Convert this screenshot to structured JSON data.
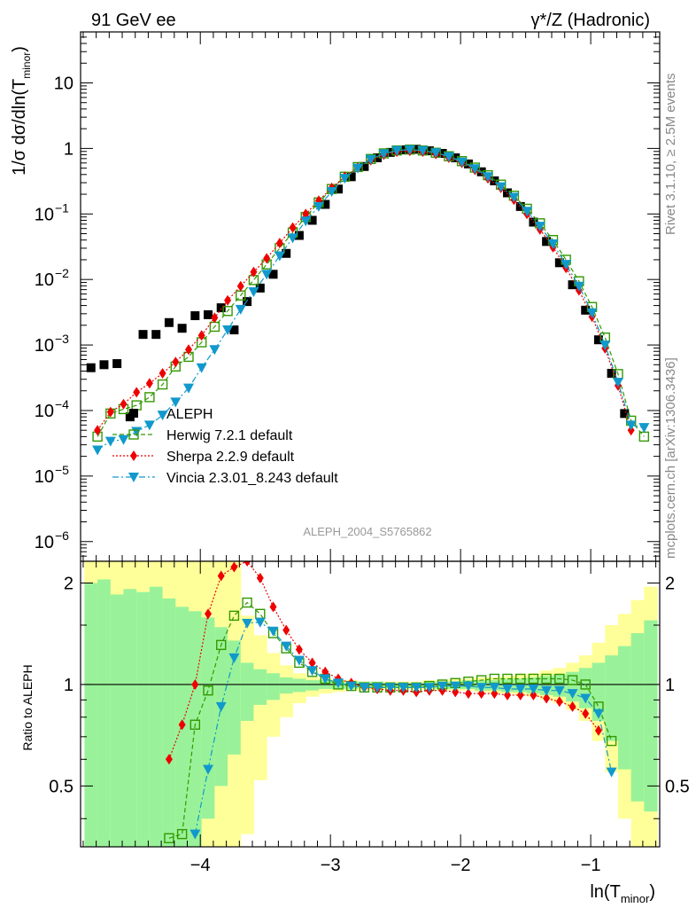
{
  "header": {
    "left": "91 GeV ee",
    "right": "γ*/Z (Hadronic)",
    "side_top": "Rivet 3.1.10, ≥ 2.5M events",
    "side_bottom": "mcplots.cern.ch [arXiv:1306.3436]",
    "watermark": "ALEPH_2004_S5765862"
  },
  "colors": {
    "data": "#000000",
    "herwig": "#339900",
    "sherpa": "#ee0000",
    "vincia": "#1199cc",
    "band_outer": "#ffff99",
    "band_inner": "#99f299"
  },
  "chart_data": [
    {
      "type": "scatter",
      "ylabel": "1/σ dσ/dln(T_minor)",
      "yscale": "log",
      "ylim": [
        5e-07,
        60
      ],
      "xlim": [
        -4.92,
        -0.47
      ],
      "ytick_labels": [
        "10^-6",
        "10^-5",
        "10^-4",
        "10^-3",
        "10^-2",
        "10^-1",
        "1",
        "10"
      ],
      "legend_position": "lower-left",
      "series": [
        {
          "name": "ALEPH",
          "x": [
            -4.84,
            -4.74,
            -4.64,
            -4.54,
            -4.44,
            -4.34,
            -4.24,
            -4.14,
            -4.04,
            -3.94,
            -3.84,
            -3.74,
            -3.64,
            -3.54,
            -3.44,
            -3.34,
            -3.24,
            -3.14,
            -3.04,
            -2.94,
            -2.84,
            -2.74,
            -2.64,
            -2.54,
            -2.44,
            -2.34,
            -2.24,
            -2.14,
            -2.04,
            -1.94,
            -1.84,
            -1.74,
            -1.64,
            -1.54,
            -1.44,
            -1.34,
            -1.24,
            -1.14,
            -1.04,
            -0.94,
            -0.84,
            -0.74,
            -0.64,
            -0.54
          ],
          "y": [
            0.00045,
            0.0005,
            0.00052,
            8e-05,
            0.00145,
            0.00145,
            0.0022,
            0.0018,
            0.0028,
            0.0029,
            0.0037,
            0.0017,
            0.0046,
            0.0074,
            0.012,
            0.025,
            0.047,
            0.08,
            0.14,
            0.24,
            0.37,
            0.53,
            0.72,
            0.87,
            0.95,
            0.97,
            0.92,
            0.84,
            0.72,
            0.58,
            0.44,
            0.32,
            0.21,
            0.13,
            0.075,
            0.038,
            0.018,
            0.0083,
            0.0034,
            0.0012,
            0.00037,
            9e-05,
            0,
            0
          ],
          "note": ""
        },
        {
          "name": "Herwig 7.2.1 default",
          "x": [
            -4.79,
            -4.69,
            -4.59,
            -4.49,
            -4.39,
            -4.29,
            -4.19,
            -4.09,
            -3.99,
            -3.89,
            -3.79,
            -3.69,
            -3.59,
            -3.49,
            -3.39,
            -3.29,
            -3.19,
            -3.09,
            -2.99,
            -2.89,
            -2.79,
            -2.69,
            -2.59,
            -2.49,
            -2.39,
            -2.29,
            -2.19,
            -2.09,
            -1.99,
            -1.89,
            -1.79,
            -1.69,
            -1.59,
            -1.49,
            -1.39,
            -1.29,
            -1.19,
            -1.09,
            -0.99,
            -0.89,
            -0.79,
            -0.69,
            -0.59,
            -0.49
          ],
          "y": [
            4e-05,
            9e-05,
            0.000105,
            0.00012,
            0.00016,
            0.00025,
            0.00047,
            0.00066,
            0.0011,
            0.0019,
            0.0033,
            0.0057,
            0.0098,
            0.017,
            0.03,
            0.052,
            0.09,
            0.15,
            0.24,
            0.37,
            0.52,
            0.69,
            0.84,
            0.93,
            0.96,
            0.93,
            0.86,
            0.76,
            0.64,
            0.51,
            0.39,
            0.28,
            0.19,
            0.12,
            0.072,
            0.04,
            0.02,
            0.0094,
            0.0038,
            0.0013,
            0.00036,
            7e-05,
            4e-05,
            0
          ]
        },
        {
          "name": "Sherpa 2.2.9 default",
          "x": [
            -4.79,
            -4.69,
            -4.59,
            -4.49,
            -4.39,
            -4.29,
            -4.19,
            -4.09,
            -3.99,
            -3.89,
            -3.79,
            -3.69,
            -3.59,
            -3.49,
            -3.39,
            -3.29,
            -3.19,
            -3.09,
            -2.99,
            -2.89,
            -2.79,
            -2.69,
            -2.59,
            -2.49,
            -2.39,
            -2.29,
            -2.19,
            -2.09,
            -1.99,
            -1.89,
            -1.79,
            -1.69,
            -1.59,
            -1.49,
            -1.39,
            -1.29,
            -1.19,
            -1.09,
            -0.99,
            -0.89,
            -0.79,
            -0.69,
            -0.59,
            -0.49
          ],
          "y": [
            5e-05,
            9.5e-05,
            0.000125,
            0.00019,
            0.00026,
            0.00037,
            0.00055,
            0.00085,
            0.0014,
            0.0026,
            0.0048,
            0.0079,
            0.013,
            0.021,
            0.036,
            0.062,
            0.1,
            0.16,
            0.25,
            0.37,
            0.51,
            0.66,
            0.8,
            0.89,
            0.92,
            0.89,
            0.82,
            0.72,
            0.6,
            0.47,
            0.35,
            0.25,
            0.165,
            0.1,
            0.058,
            0.031,
            0.015,
            0.0068,
            0.0027,
            0.00089,
            0.00024,
            5e-05,
            0,
            0
          ]
        },
        {
          "name": "Vincia 2.3.01_8.243 default",
          "x": [
            -4.79,
            -4.69,
            -4.59,
            -4.49,
            -4.39,
            -4.29,
            -4.19,
            -4.09,
            -3.99,
            -3.89,
            -3.79,
            -3.69,
            -3.59,
            -3.49,
            -3.39,
            -3.29,
            -3.19,
            -3.09,
            -2.99,
            -2.89,
            -2.79,
            -2.69,
            -2.59,
            -2.49,
            -2.39,
            -2.29,
            -2.19,
            -2.09,
            -1.99,
            -1.89,
            -1.79,
            -1.69,
            -1.59,
            -1.49,
            -1.39,
            -1.29,
            -1.19,
            -1.09,
            -0.99,
            -0.89,
            -0.79,
            -0.69,
            -0.59,
            -0.49
          ],
          "y": [
            2.5e-05,
            3.4e-05,
            3.6e-05,
            4.8e-05,
            6e-05,
            8.5e-05,
            0.000135,
            0.00022,
            0.00045,
            0.00085,
            0.0017,
            0.0035,
            0.0065,
            0.012,
            0.023,
            0.043,
            0.078,
            0.13,
            0.22,
            0.35,
            0.5,
            0.68,
            0.83,
            0.93,
            0.96,
            0.93,
            0.86,
            0.75,
            0.62,
            0.49,
            0.37,
            0.26,
            0.18,
            0.11,
            0.065,
            0.035,
            0.017,
            0.0079,
            0.0031,
            0.001,
            0.00027,
            6e-05,
            5.5e-05,
            0
          ]
        }
      ],
      "legend": [
        "ALEPH",
        "Herwig 7.2.1 default",
        "Sherpa 2.2.9 default",
        "Vincia 2.3.01_8.243 default"
      ]
    },
    {
      "type": "scatter",
      "ylabel": "Ratio to ALEPH",
      "xlabel": "ln(T_minor)",
      "ylim": [
        0.33,
        2.32
      ],
      "xlim": [
        -4.92,
        -0.47
      ],
      "xtick_labels": [
        "−4",
        "−3",
        "−2",
        "−1"
      ],
      "ytick_labels": [
        "0.5",
        "1",
        "2"
      ],
      "uncertainty_band": {
        "x_edges": [
          -4.89,
          -4.79,
          -4.69,
          -4.59,
          -4.49,
          -4.39,
          -4.29,
          -4.19,
          -4.09,
          -3.99,
          -3.89,
          -3.79,
          -3.69,
          -3.59,
          -3.49,
          -3.39,
          -3.29,
          -3.19,
          -3.09,
          -2.99,
          -2.89,
          -2.79,
          -2.69,
          -2.59,
          -2.49,
          -2.39,
          -2.29,
          -2.19,
          -2.09,
          -1.99,
          -1.89,
          -1.79,
          -1.69,
          -1.59,
          -1.49,
          -1.39,
          -1.29,
          -1.19,
          -1.09,
          -0.99,
          -0.89,
          -0.79,
          -0.69,
          -0.59,
          -0.49
        ],
        "outer_low": [
          0.33,
          0.33,
          0.33,
          0.33,
          0.33,
          0.33,
          0.33,
          0.33,
          0.33,
          0.33,
          0.33,
          0.33,
          0.36,
          0.52,
          0.7,
          0.8,
          0.88,
          0.92,
          0.94,
          0.95,
          0.96,
          0.96,
          0.97,
          0.97,
          0.97,
          0.97,
          0.97,
          0.96,
          0.96,
          0.96,
          0.95,
          0.94,
          0.94,
          0.93,
          0.92,
          0.9,
          0.88,
          0.84,
          0.78,
          0.68,
          0.55,
          0.4,
          0.33,
          0.33
        ],
        "outer_high": [
          2.32,
          2.32,
          2.32,
          2.32,
          2.32,
          2.32,
          2.32,
          2.32,
          2.32,
          2.32,
          2.32,
          2.32,
          1.6,
          1.4,
          1.24,
          1.14,
          1.08,
          1.05,
          1.04,
          1.03,
          1.03,
          1.02,
          1.02,
          1.02,
          1.02,
          1.02,
          1.03,
          1.03,
          1.04,
          1.04,
          1.05,
          1.05,
          1.06,
          1.07,
          1.08,
          1.1,
          1.12,
          1.16,
          1.22,
          1.33,
          1.5,
          1.62,
          1.78,
          1.95
        ],
        "inner_low": [
          0.33,
          0.33,
          0.33,
          0.33,
          0.33,
          0.33,
          0.33,
          0.33,
          0.33,
          0.4,
          0.5,
          0.62,
          0.78,
          0.87,
          0.9,
          0.94,
          0.95,
          0.96,
          0.97,
          0.97,
          0.97,
          0.98,
          0.98,
          0.98,
          0.98,
          0.98,
          0.98,
          0.97,
          0.97,
          0.97,
          0.96,
          0.96,
          0.95,
          0.95,
          0.94,
          0.93,
          0.92,
          0.89,
          0.85,
          0.78,
          0.68,
          0.56,
          0.45,
          0.42
        ],
        "inner_high": [
          2.0,
          2.05,
          1.85,
          1.92,
          1.88,
          1.95,
          1.8,
          1.7,
          1.65,
          1.58,
          1.48,
          1.35,
          1.16,
          1.11,
          1.08,
          1.05,
          1.04,
          1.03,
          1.03,
          1.02,
          1.02,
          1.02,
          1.02,
          1.01,
          1.01,
          1.01,
          1.02,
          1.02,
          1.02,
          1.03,
          1.03,
          1.03,
          1.04,
          1.04,
          1.05,
          1.06,
          1.07,
          1.09,
          1.12,
          1.16,
          1.22,
          1.3,
          1.42,
          1.55
        ]
      },
      "series": [
        {
          "name": "Herwig 7.2.1 default",
          "x": [
            -4.24,
            -4.14,
            -4.04,
            -3.94,
            -3.84,
            -3.74,
            -3.64,
            -3.54,
            -3.44,
            -3.34,
            -3.24,
            -3.14,
            -3.04,
            -2.94,
            -2.84,
            -2.74,
            -2.64,
            -2.54,
            -2.44,
            -2.34,
            -2.24,
            -2.14,
            -2.04,
            -1.94,
            -1.84,
            -1.74,
            -1.64,
            -1.54,
            -1.44,
            -1.34,
            -1.24,
            -1.14,
            -1.04,
            -0.94,
            -0.84
          ],
          "y": [
            0.35,
            0.36,
            0.76,
            0.96,
            1.31,
            1.6,
            1.75,
            1.62,
            1.42,
            1.28,
            1.16,
            1.09,
            1.04,
            1.0,
            0.99,
            0.98,
            0.98,
            0.98,
            0.98,
            0.98,
            0.99,
            1.0,
            1.01,
            1.02,
            1.03,
            1.04,
            1.04,
            1.04,
            1.04,
            1.04,
            1.04,
            1.03,
            1.0,
            0.86,
            0.68
          ]
        },
        {
          "name": "Sherpa 2.2.9 default",
          "x": [
            -4.24,
            -4.14,
            -4.04,
            -3.94,
            -3.84,
            -3.74,
            -3.64,
            -3.54,
            -3.44,
            -3.34,
            -3.24,
            -3.14,
            -3.04,
            -2.94,
            -2.84,
            -2.74,
            -2.64,
            -2.54,
            -2.44,
            -2.34,
            -2.24,
            -2.14,
            -2.04,
            -1.94,
            -1.84,
            -1.74,
            -1.64,
            -1.54,
            -1.44,
            -1.34,
            -1.24,
            -1.14,
            -1.04,
            -0.94
          ],
          "y": [
            0.6,
            0.76,
            1.0,
            1.62,
            2.1,
            2.23,
            2.32,
            2.07,
            1.7,
            1.45,
            1.27,
            1.16,
            1.09,
            1.04,
            1.01,
            0.98,
            0.97,
            0.96,
            0.96,
            0.95,
            0.96,
            0.96,
            0.95,
            0.94,
            0.94,
            0.94,
            0.93,
            0.93,
            0.93,
            0.91,
            0.89,
            0.86,
            0.82,
            0.73
          ]
        },
        {
          "name": "Vincia 2.3.01_8.243 default",
          "x": [
            -4.04,
            -3.94,
            -3.84,
            -3.74,
            -3.64,
            -3.54,
            -3.44,
            -3.34,
            -3.24,
            -3.14,
            -3.04,
            -2.94,
            -2.84,
            -2.74,
            -2.64,
            -2.54,
            -2.44,
            -2.34,
            -2.24,
            -2.14,
            -2.04,
            -1.94,
            -1.84,
            -1.74,
            -1.64,
            -1.54,
            -1.44,
            -1.34,
            -1.24,
            -1.14,
            -1.04,
            -0.94,
            -0.84
          ],
          "y": [
            0.36,
            0.56,
            0.86,
            1.2,
            1.52,
            1.53,
            1.44,
            1.3,
            1.18,
            1.1,
            1.04,
            1.01,
            0.99,
            0.98,
            0.98,
            0.98,
            0.98,
            0.98,
            0.98,
            0.99,
            0.99,
            0.99,
            0.98,
            0.98,
            0.97,
            0.97,
            0.97,
            0.96,
            0.96,
            0.94,
            0.91,
            0.82,
            0.55
          ]
        }
      ]
    }
  ]
}
